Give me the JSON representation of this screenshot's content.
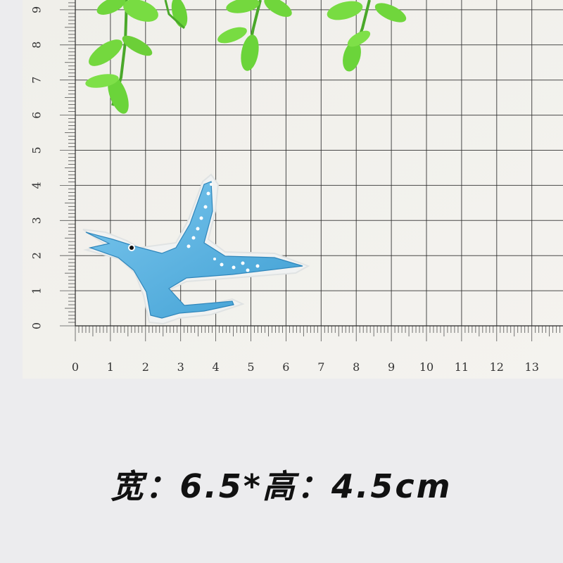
{
  "ruler": {
    "x_ticks": [
      "0",
      "1",
      "2",
      "3",
      "4",
      "5",
      "6",
      "7",
      "8",
      "9",
      "10",
      "11",
      "12",
      "13",
      "1"
    ],
    "y_ticks": [
      "0",
      "1",
      "2",
      "3",
      "4",
      "5",
      "6",
      "7",
      "8",
      "9"
    ],
    "unit": "cm"
  },
  "caption": "宽：6.5*高：4.5cm",
  "colors": {
    "page_background": "#ececee",
    "grid_paper": "#f3f2ee",
    "grid_line": "#2c2c2c",
    "patch_blue": "#5ab4e0",
    "leaf_green": "#6bd43a"
  },
  "objects": [
    "blue-pterosaur-embroidered-patch",
    "green-leaf-sprigs",
    "centimeter-grid-paper"
  ]
}
